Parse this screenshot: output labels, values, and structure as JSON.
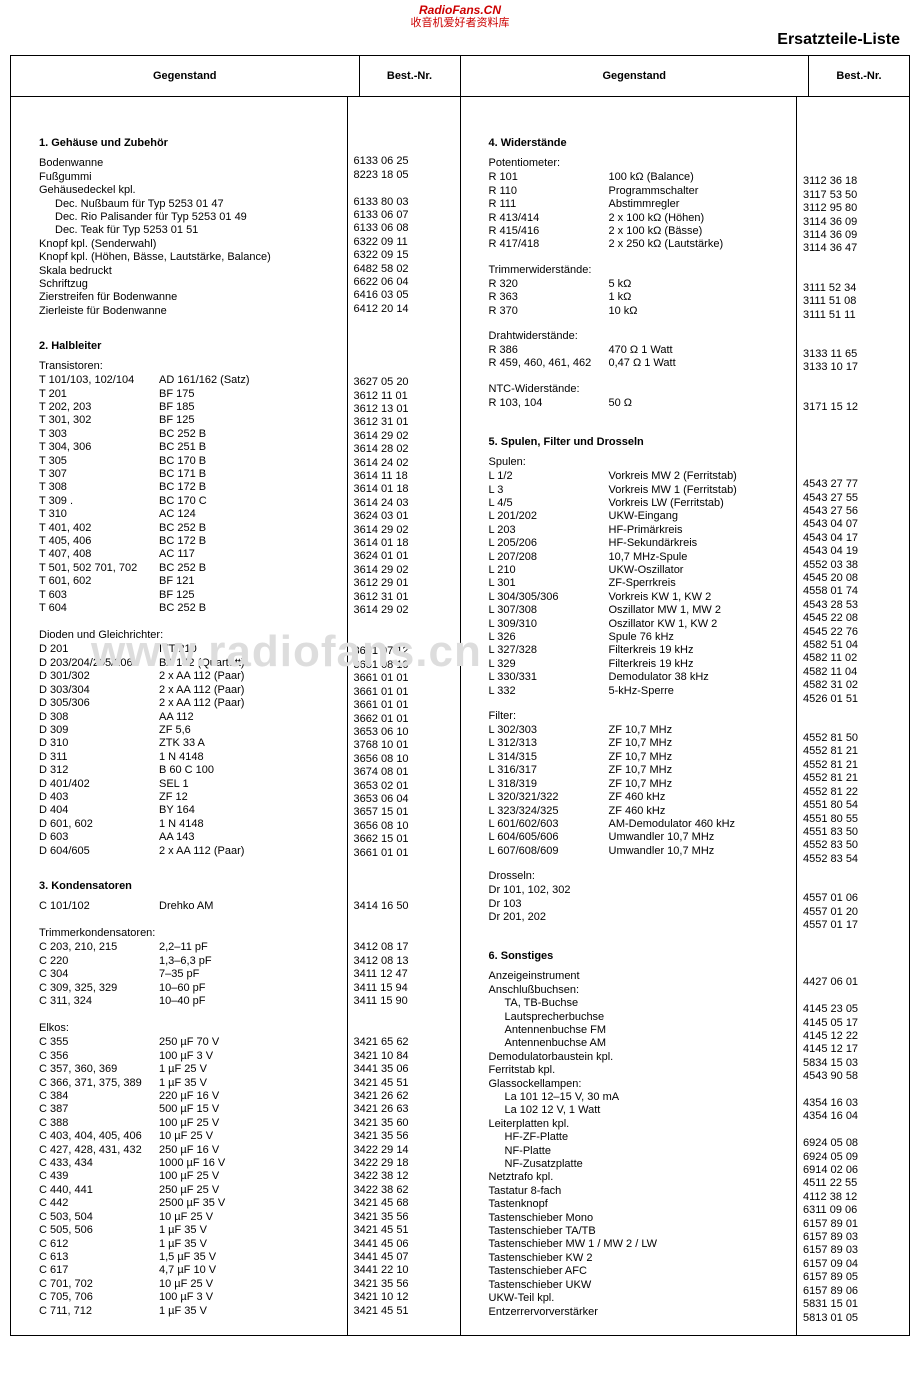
{
  "watermark_site": "RadioFans.CN",
  "watermark_sub": "收音机爱好者资料库",
  "page_title": "Ersatzteile-Liste",
  "head_gegenstand": "Gegenstand",
  "head_bestnr": "Best.-Nr.",
  "watermark_big": "www.radiofans.cn",
  "left": {
    "sec1_title": "1. Gehäuse und Zubehör",
    "sec1_rows": [
      {
        "a": "Bodenwanne",
        "n": "6133 06 25"
      },
      {
        "a": "Fußgummi",
        "n": "8223 18 05"
      },
      {
        "a": "Gehäusedeckel kpl.",
        "n": ""
      },
      {
        "a": "Dec. Nußbaum für Typ 5253 01 47",
        "n": "6133 80 03",
        "indent": 1
      },
      {
        "a": "Dec. Rio Palisander für Typ 5253 01 49",
        "n": "6133 06 07",
        "indent": 1
      },
      {
        "a": "Dec. Teak für Typ 5253 01 51",
        "n": "6133 06 08",
        "indent": 1
      },
      {
        "a": "Knopf kpl. (Senderwahl)",
        "n": "6322 09 11"
      },
      {
        "a": "Knopf kpl. (Höhen, Bässe, Lautstärke, Balance)",
        "n": "6322 09 15"
      },
      {
        "a": "Skala bedruckt",
        "n": "6482 58 02"
      },
      {
        "a": "Schriftzug",
        "n": "6622 06 04"
      },
      {
        "a": "Zierstreifen für Bodenwanne",
        "n": "6416 03 05"
      },
      {
        "a": "Zierleiste für Bodenwanne",
        "n": "6412 20 14"
      }
    ],
    "sec2_title": "2. Halbleiter",
    "sec2_sub1": "Transistoren:",
    "sec2_rows1": [
      {
        "a": "T 101/103, 102/104",
        "b": "AD 161/162 (Satz)",
        "n": "3627 05 20"
      },
      {
        "a": "T 201",
        "b": "BF 175",
        "n": "3612 11 01"
      },
      {
        "a": "T 202, 203",
        "b": "BF 185",
        "n": "3612 13 01"
      },
      {
        "a": "T 301, 302",
        "b": "BF 125",
        "n": "3612 31 01"
      },
      {
        "a": "T 303",
        "b": "BC 252 B",
        "n": "3614 29 02"
      },
      {
        "a": "T 304, 306",
        "b": "BC 251 B",
        "n": "3614 28 02"
      },
      {
        "a": "T 305",
        "b": "BC 170 B",
        "n": "3614 24 02"
      },
      {
        "a": "T 307",
        "b": "BC 171 B",
        "n": "3614 11 18"
      },
      {
        "a": "T 308",
        "b": "BC 172 B",
        "n": "3614 01 18"
      },
      {
        "a": "T 309  .",
        "b": "BC 170 C",
        "n": "3614 24 03"
      },
      {
        "a": "T 310",
        "b": "AC 124",
        "n": "3624 03 01"
      },
      {
        "a": "T 401, 402",
        "b": "BC 252 B",
        "n": "3614 29 02"
      },
      {
        "a": "T 405, 406",
        "b": "BC 172 B",
        "n": "3614 01 18"
      },
      {
        "a": "T 407, 408",
        "b": "AC 117",
        "n": "3624 01 01"
      },
      {
        "a": "T 501, 502 701, 702",
        "b": "BC 252 B",
        "n": "3614 29 02"
      },
      {
        "a": "T 601, 602",
        "b": "BF 121",
        "n": "3612 29 01"
      },
      {
        "a": "T 603",
        "b": "BF 125",
        "n": "3612 31 01"
      },
      {
        "a": "T 604",
        "b": "BC 252 B",
        "n": "3614 29 02"
      }
    ],
    "sec2_sub2": "Dioden und Gleichrichter:",
    "sec2_rows2": [
      {
        "a": "D 201",
        "b": "ITT 210",
        "n": "3651 07 12"
      },
      {
        "a": "D 203/204/205/206",
        "b": "BA 142 (Quartett)",
        "n": "3651 08 10"
      },
      {
        "a": "D 301/302",
        "b": "2 x AA 112 (Paar)",
        "n": "3661 01 01"
      },
      {
        "a": "D 303/304",
        "b": "2 x AA 112 (Paar)",
        "n": "3661 01 01"
      },
      {
        "a": "D 305/306",
        "b": "2 x AA 112 (Paar)",
        "n": "3661 01 01"
      },
      {
        "a": "D 308",
        "b": "AA 112",
        "n": "3662 01 01"
      },
      {
        "a": "D 309",
        "b": "ZF 5,6",
        "n": "3653 06 10"
      },
      {
        "a": "D 310",
        "b": "ZTK 33 A",
        "n": "3768 10 01"
      },
      {
        "a": "D 311",
        "b": "1 N 4148",
        "n": "3656 08 10"
      },
      {
        "a": "D 312",
        "b": "B 60 C 100",
        "n": "3674 08 01"
      },
      {
        "a": "D 401/402",
        "b": "SEL 1",
        "n": "3653 02 01"
      },
      {
        "a": "D 403",
        "b": "ZF 12",
        "n": "3653 06 04"
      },
      {
        "a": "D 404",
        "b": "BY 164",
        "n": "3657 15 01"
      },
      {
        "a": "D 601, 602",
        "b": "1 N 4148",
        "n": "3656 08 10"
      },
      {
        "a": "D 603",
        "b": "AA 143",
        "n": "3662 15 01"
      },
      {
        "a": "D 604/605",
        "b": "2 x AA 112 (Paar)",
        "n": "3661 01 01"
      }
    ],
    "sec3_title": "3. Kondensatoren",
    "sec3_rows0": [
      {
        "a": "C 101/102",
        "b": "Drehko AM",
        "n": "3414 16 50"
      }
    ],
    "sec3_sub1": "Trimmerkondensatoren:",
    "sec3_rows1": [
      {
        "a": "C 203, 210, 215",
        "b": "2,2–11 pF",
        "n": "3412 08 17"
      },
      {
        "a": "C 220",
        "b": "1,3–6,3 pF",
        "n": "3412 08 13"
      },
      {
        "a": "C 304",
        "b": "7–35 pF",
        "n": "3411 12 47"
      },
      {
        "a": "C 309, 325, 329",
        "b": "10–60 pF",
        "n": "3411 15 94"
      },
      {
        "a": "C 311, 324",
        "b": "10–40 pF",
        "n": "3411 15 90"
      }
    ],
    "sec3_sub2": "Elkos:",
    "sec3_rows2": [
      {
        "a": "C 355",
        "b": "250 µF  70 V",
        "n": "3421 65 62"
      },
      {
        "a": "C 356",
        "b": "100 µF   3 V",
        "n": "3421 10 84"
      },
      {
        "a": "C 357, 360, 369",
        "b": "1 µF  25 V",
        "n": "3441 35 06"
      },
      {
        "a": "C 366, 371, 375, 389",
        "b": "1 µF  35 V",
        "n": "3421 45 51"
      },
      {
        "a": "C 384",
        "b": "220 µF  16 V",
        "n": "3421 26 62"
      },
      {
        "a": "C 387",
        "b": "500 µF  15 V",
        "n": "3421 26 63"
      },
      {
        "a": "C 388",
        "b": "100 µF  25 V",
        "n": "3421 35 60"
      },
      {
        "a": "C 403, 404, 405, 406",
        "b": "10 µF  25 V",
        "n": "3421 35 56"
      },
      {
        "a": "C 427, 428, 431, 432",
        "b": "250 µF  16 V",
        "n": "3422 29 14"
      },
      {
        "a": "C 433, 434",
        "b": "1000 µF  16 V",
        "n": "3422 29 18"
      },
      {
        "a": "C 439",
        "b": "100 µF  25 V",
        "n": "3422 38 12"
      },
      {
        "a": "C 440, 441",
        "b": "250 µF  25 V",
        "n": "3422 38 62"
      },
      {
        "a": "C 442",
        "b": "2500 µF  35 V",
        "n": "3421 45 68"
      },
      {
        "a": "C 503, 504",
        "b": "10 µF  25 V",
        "n": "3421 35 56"
      },
      {
        "a": "C 505, 506",
        "b": "1 µF  35 V",
        "n": "3421 45 51"
      },
      {
        "a": "C 612",
        "b": "1 µF  35 V",
        "n": "3441 45 06"
      },
      {
        "a": "C 613",
        "b": "1,5 µF  35 V",
        "n": "3441 45 07"
      },
      {
        "a": "C 617",
        "b": "4,7 µF  10 V",
        "n": "3441 22 10"
      },
      {
        "a": "C 701, 702",
        "b": "10 µF  25 V",
        "n": "3421 35 56"
      },
      {
        "a": "C 705, 706",
        "b": "100 µF   3 V",
        "n": "3421 10 12"
      },
      {
        "a": "C 711, 712",
        "b": "1 µF  35 V",
        "n": "3421 45 51"
      }
    ]
  },
  "right": {
    "sec4_title": "4. Widerstände",
    "sec4_sub1": "Potentiometer:",
    "sec4_rows1": [
      {
        "a": "R 101",
        "b": "100 kΩ (Balance)",
        "n": "3112 36 18"
      },
      {
        "a": "R 110",
        "b": "Programmschalter",
        "n": "3117 53 50"
      },
      {
        "a": "R 111",
        "b": "Abstimmregler",
        "n": "3112 95 80"
      },
      {
        "a": "R 413/414",
        "b": "2 x 100 kΩ (Höhen)",
        "n": "3114 36 09"
      },
      {
        "a": "R 415/416",
        "b": "2 x 100 kΩ (Bässe)",
        "n": "3114 36 09"
      },
      {
        "a": "R 417/418",
        "b": "2 x 250 kΩ (Lautstärke)",
        "n": "3114 36 47"
      }
    ],
    "sec4_sub2": "Trimmerwiderstände:",
    "sec4_rows2": [
      {
        "a": "R 320",
        "b": "5 kΩ",
        "n": "3111 52 34"
      },
      {
        "a": "R 363",
        "b": "1 kΩ",
        "n": "3111 51 08"
      },
      {
        "a": "R 370",
        "b": "10 kΩ",
        "n": "3111 51 11"
      }
    ],
    "sec4_sub3": "Drahtwiderstände:",
    "sec4_rows3": [
      {
        "a": "R 386",
        "b": "470 Ω 1 Watt",
        "n": "3133 11 65"
      },
      {
        "a": "R 459, 460, 461, 462",
        "b": "0,47 Ω 1 Watt",
        "n": "3133 10 17"
      }
    ],
    "sec4_sub4": "NTC-Widerstände:",
    "sec4_rows4": [
      {
        "a": "R 103, 104",
        "b": "50 Ω",
        "n": "3171 15 12"
      }
    ],
    "sec5_title": "5. Spulen, Filter und Drosseln",
    "sec5_sub1": "Spulen:",
    "sec5_rows1": [
      {
        "a": "L 1/2",
        "b": "Vorkreis MW 2 (Ferritstab)",
        "n": "4543 27 77"
      },
      {
        "a": "L 3",
        "b": "Vorkreis MW 1 (Ferritstab)",
        "n": "4543 27 55"
      },
      {
        "a": "L 4/5",
        "b": "Vorkreis LW     (Ferritstab)",
        "n": "4543 27 56"
      },
      {
        "a": "L 201/202",
        "b": "UKW-Eingang",
        "n": "4543 04 07"
      },
      {
        "a": "L 203",
        "b": "HF-Primärkreis",
        "n": "4543 04 17"
      },
      {
        "a": "L 205/206",
        "b": "HF-Sekundärkreis",
        "n": "4543 04 19"
      },
      {
        "a": "L 207/208",
        "b": "10,7 MHz-Spule",
        "n": "4552 03 38"
      },
      {
        "a": "L 210",
        "b": "UKW-Oszillator",
        "n": "4545 20 08"
      },
      {
        "a": "L 301",
        "b": "ZF-Sperrkreis",
        "n": "4558 01 74"
      },
      {
        "a": "L 304/305/306",
        "b": "Vorkreis KW 1, KW 2",
        "n": "4543 28 53"
      },
      {
        "a": "L 307/308",
        "b": "Oszillator MW 1, MW 2",
        "n": "4545 22 08"
      },
      {
        "a": "L 309/310",
        "b": "Oszillator KW 1, KW 2",
        "n": "4545 22 76"
      },
      {
        "a": "L 326",
        "b": "Spule 76 kHz",
        "n": "4582 51 04"
      },
      {
        "a": "L 327/328",
        "b": "Filterkreis 19 kHz",
        "n": "4582 11 02"
      },
      {
        "a": "L 329",
        "b": "Filterkreis 19 kHz",
        "n": "4582 11 04"
      },
      {
        "a": "L 330/331",
        "b": "Demodulator 38 kHz",
        "n": "4582 31 02"
      },
      {
        "a": "L 332",
        "b": "5-kHz-Sperre",
        "n": "4526 01 51"
      }
    ],
    "sec5_sub2": "Filter:",
    "sec5_rows2": [
      {
        "a": "L 302/303",
        "b": "ZF 10,7 MHz",
        "n": "4552 81 50"
      },
      {
        "a": "L 312/313",
        "b": "ZF 10,7 MHz",
        "n": "4552 81 21"
      },
      {
        "a": "L 314/315",
        "b": "ZF 10,7 MHz",
        "n": "4552 81 21"
      },
      {
        "a": "L 316/317",
        "b": "ZF 10,7 MHz",
        "n": "4552 81 21"
      },
      {
        "a": "L 318/319",
        "b": "ZF 10,7 MHz",
        "n": "4552 81 22"
      },
      {
        "a": "L 320/321/322",
        "b": "ZF 460 kHz",
        "n": "4551 80 54"
      },
      {
        "a": "L 323/324/325",
        "b": "ZF 460 kHz",
        "n": "4551 80 55"
      },
      {
        "a": "L 601/602/603",
        "b": "AM-Demodulator 460 kHz",
        "n": "4551 83 50"
      },
      {
        "a": "L 604/605/606",
        "b": "Umwandler 10,7 MHz",
        "n": "4552 83 50"
      },
      {
        "a": "L 607/608/609",
        "b": "Umwandler 10,7 MHz",
        "n": "4552 83 54"
      }
    ],
    "sec5_sub3": "Drosseln:",
    "sec5_rows3": [
      {
        "a": "Dr 101, 102, 302",
        "b": "",
        "n": "4557 01 06"
      },
      {
        "a": "Dr 103",
        "b": "",
        "n": "4557 01 20"
      },
      {
        "a": "Dr 201, 202",
        "b": "",
        "n": "4557 01 17"
      }
    ],
    "sec6_title": "6. Sonstiges",
    "sec6_rows": [
      {
        "a": "Anzeigeinstrument",
        "n": "4427 06 01"
      },
      {
        "a": "Anschlußbuchsen:",
        "n": ""
      },
      {
        "a": "TA, TB-Buchse",
        "n": "4145 23 05",
        "indent": 1
      },
      {
        "a": "Lautsprecherbuchse",
        "n": "4145 05 17",
        "indent": 1
      },
      {
        "a": "Antennenbuchse FM",
        "n": "4145 12 22",
        "indent": 1
      },
      {
        "a": "Antennenbuchse AM",
        "n": "4145 12 17",
        "indent": 1
      },
      {
        "a": "Demodulatorbaustein kpl.",
        "n": "5834 15 03"
      },
      {
        "a": "Ferritstab kpl.",
        "n": "4543 90 58"
      },
      {
        "a": "Glassockellampen:",
        "n": ""
      },
      {
        "a": "La 101  12–15 V, 30 mA",
        "n": "4354 16 03",
        "indent": 1
      },
      {
        "a": "La 102  12 V, 1 Watt",
        "n": "4354 16 04",
        "indent": 1
      },
      {
        "a": "Leiterplatten kpl.",
        "n": ""
      },
      {
        "a": "HF-ZF-Platte",
        "n": "6924 05 08",
        "indent": 1
      },
      {
        "a": "NF-Platte",
        "n": "6924 05 09",
        "indent": 1
      },
      {
        "a": "NF-Zusatzplatte",
        "n": "6914 02 06",
        "indent": 1
      },
      {
        "a": "Netztrafo kpl.",
        "n": "4511 22 55"
      },
      {
        "a": "Tastatur 8-fach",
        "n": "4112 38 12"
      },
      {
        "a": "Tastenknopf",
        "n": "6311 09 06"
      },
      {
        "a": "Tastenschieber Mono",
        "n": "6157 89 01"
      },
      {
        "a": "Tastenschieber TA/TB",
        "n": "6157 89 03"
      },
      {
        "a": "Tastenschieber MW 1 / MW 2 / LW",
        "n": "6157 89 03"
      },
      {
        "a": "Tastenschieber KW 2",
        "n": "6157 09 04"
      },
      {
        "a": "Tastenschieber AFC",
        "n": "6157 89 05"
      },
      {
        "a": "Tastenschieber UKW",
        "n": "6157 89 06"
      },
      {
        "a": "UKW-Teil kpl.",
        "n": "5831 15 01"
      },
      {
        "a": "Entzerrervorverstärker",
        "n": "5813 01 05"
      }
    ]
  }
}
